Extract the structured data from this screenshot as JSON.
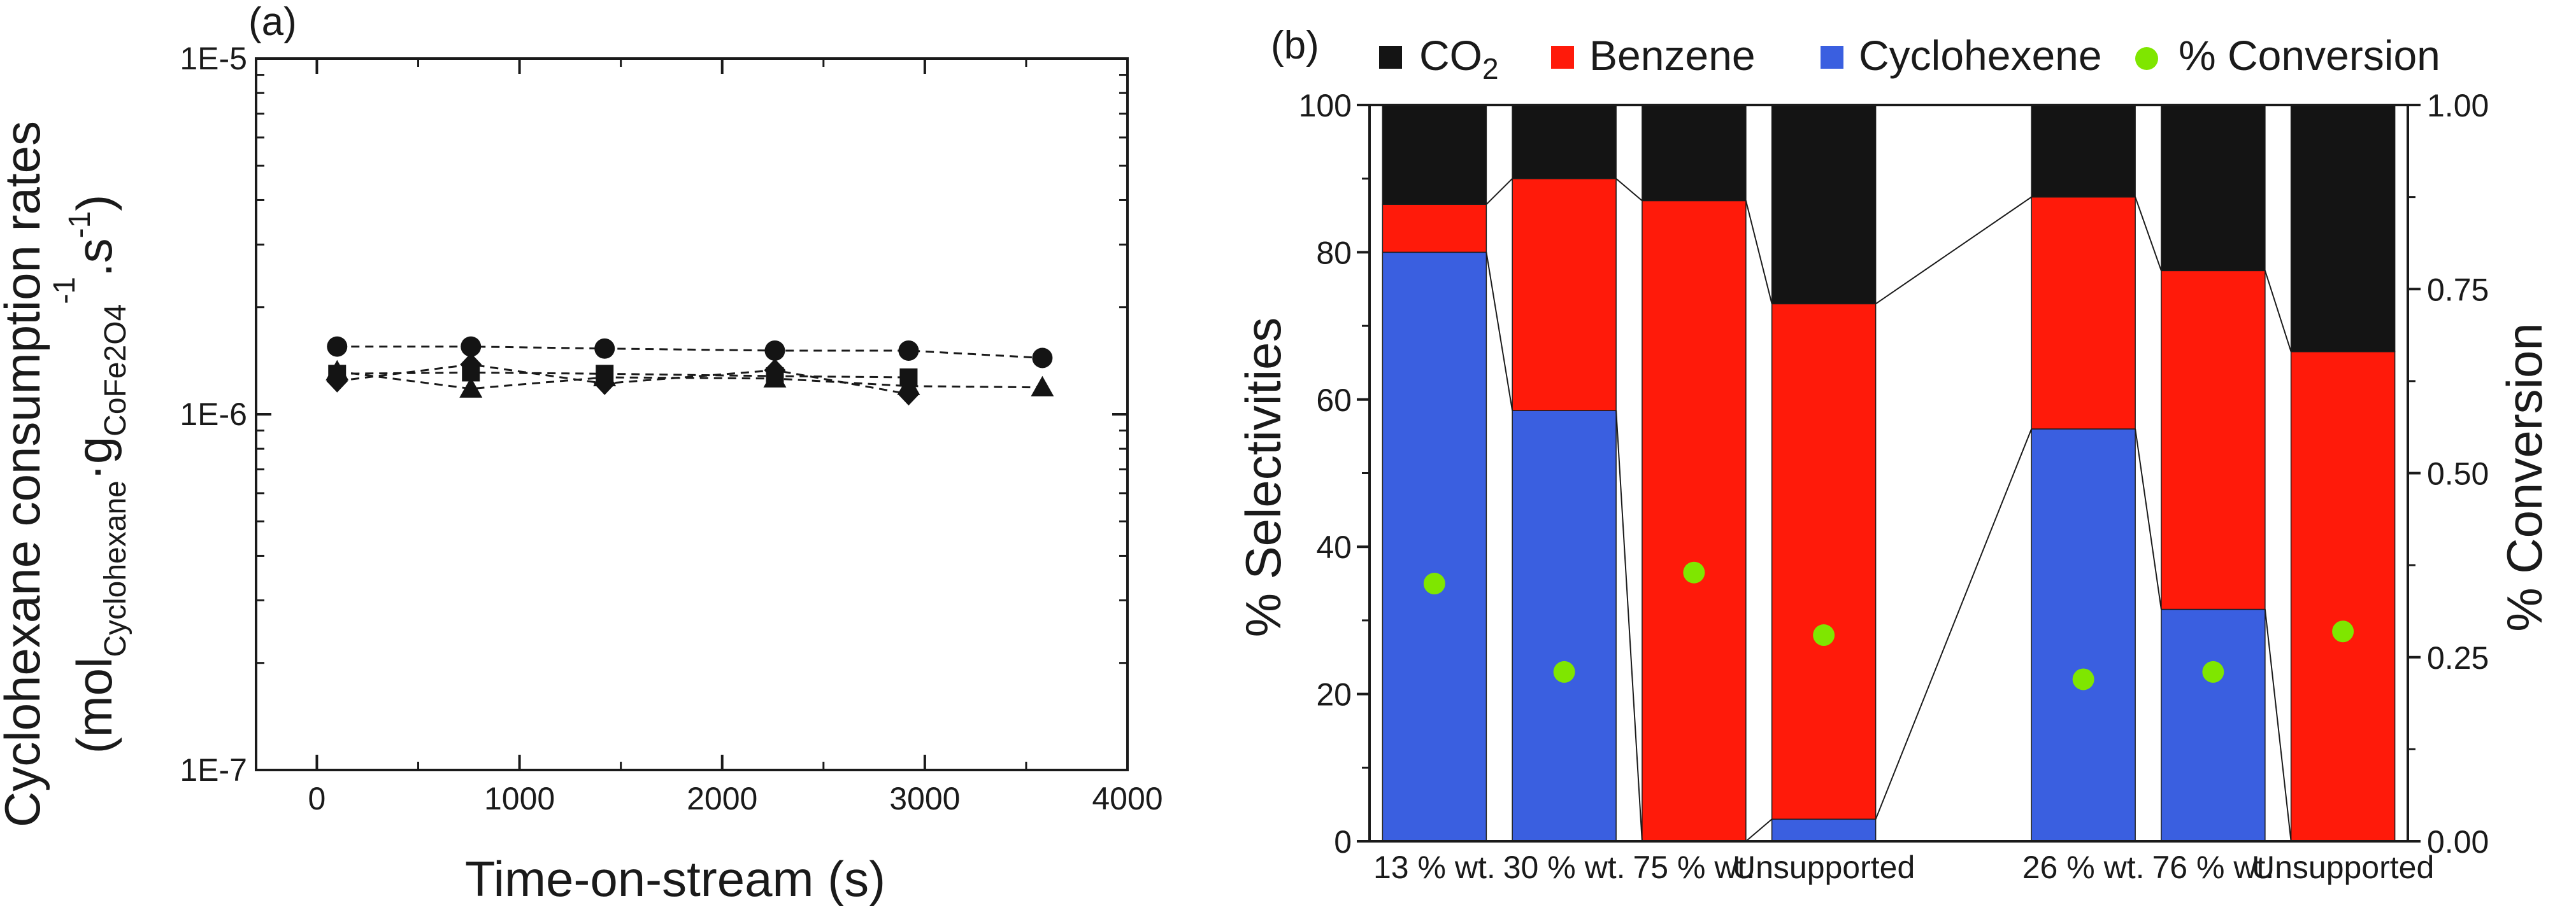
{
  "chart_data": [
    {
      "type": "scatter",
      "panel_label": "(a)",
      "yscale": "log",
      "xlim": [
        -300,
        4000
      ],
      "ylim": [
        1e-07,
        1e-05
      ],
      "xticks": [
        0,
        1000,
        2000,
        3000,
        4000
      ],
      "xtick_labels": [
        "0",
        "1000",
        "2000",
        "3000",
        "4000"
      ],
      "yticks": [
        1e-07,
        1e-06,
        1e-05
      ],
      "ytick_labels": [
        "1E-7",
        "1E-6",
        "1E-5"
      ],
      "xlabel": "Time-on-stream (s)",
      "ylabel": {
        "line1": "Cyclohexane consumption rates",
        "mol": "(mol",
        "mol_sub": "Cyclohexane",
        "dot": "·g",
        "g_sub": "CoFe2O4",
        "exp1": "-1",
        "dot2": ".s",
        "exp2": "-1",
        "close": ")"
      },
      "series": [
        {
          "name": "circle",
          "marker": "circle",
          "x": [
            100,
            760,
            1420,
            2260,
            2920,
            3580
          ],
          "y": [
            1.55e-06,
            1.55e-06,
            1.53e-06,
            1.51e-06,
            1.51e-06,
            1.44e-06
          ]
        },
        {
          "name": "triangle",
          "marker": "triangle",
          "x": [
            100,
            760,
            1420,
            2260,
            2920,
            3580
          ],
          "y": [
            1.32e-06,
            1.18e-06,
            1.27e-06,
            1.26e-06,
            1.2e-06,
            1.19e-06
          ]
        },
        {
          "name": "square",
          "marker": "square",
          "x": [
            100,
            760,
            1420,
            2260,
            2920
          ],
          "y": [
            1.3e-06,
            1.31e-06,
            1.3e-06,
            1.28e-06,
            1.27e-06
          ]
        },
        {
          "name": "diamond",
          "marker": "diamond",
          "x": [
            100,
            760,
            1420,
            2260,
            2920
          ],
          "y": [
            1.24e-06,
            1.38e-06,
            1.22e-06,
            1.33e-06,
            1.14e-06
          ]
        }
      ]
    },
    {
      "type": "bar",
      "stacked": true,
      "panel_label": "(b)",
      "categories": [
        "13 % wt.",
        "30 % wt.",
        "75 % wt.",
        "Unsupported",
        "26 % wt.",
        "76 % wt.",
        "Unsupported"
      ],
      "category_slots": [
        0,
        1,
        2,
        3,
        5,
        6,
        7
      ],
      "slot_count": 8,
      "ylabel": "% Selectivities",
      "ylim": [
        0,
        100
      ],
      "yticks": [
        0,
        20,
        40,
        60,
        80,
        100
      ],
      "ytick_labels": [
        "0",
        "20",
        "40",
        "60",
        "80",
        "100"
      ],
      "y2label": "% Conversion",
      "y2lim": [
        0,
        1
      ],
      "y2ticks": [
        0,
        0.25,
        0.5,
        0.75,
        1
      ],
      "y2tick_labels": [
        "0.00",
        "0.25",
        "0.50",
        "0.75",
        "1.00"
      ],
      "series": [
        {
          "name": "Cyclohexene",
          "color": "#3a5fe0",
          "values": [
            80,
            58.5,
            0,
            3,
            56,
            31.5,
            0
          ]
        },
        {
          "name": "Benzene",
          "color": "#ff1a0a",
          "values": [
            6.5,
            31.5,
            87,
            70,
            31.5,
            46,
            66.5
          ]
        },
        {
          "name": "CO2",
          "color": "#141414",
          "values": [
            13.5,
            10,
            13,
            27,
            12.5,
            22.5,
            33.5
          ]
        }
      ],
      "conversion": {
        "name": "% Conversion",
        "color": "#7fe600",
        "values": [
          0.35,
          0.23,
          0.365,
          0.28,
          0.22,
          0.23,
          0.285
        ]
      },
      "legend": {
        "co2_main": "CO",
        "co2_sub": "2",
        "benzene": "Benzene",
        "cyclohexene": "Cyclohexene",
        "conversion": "% Conversion"
      }
    }
  ]
}
